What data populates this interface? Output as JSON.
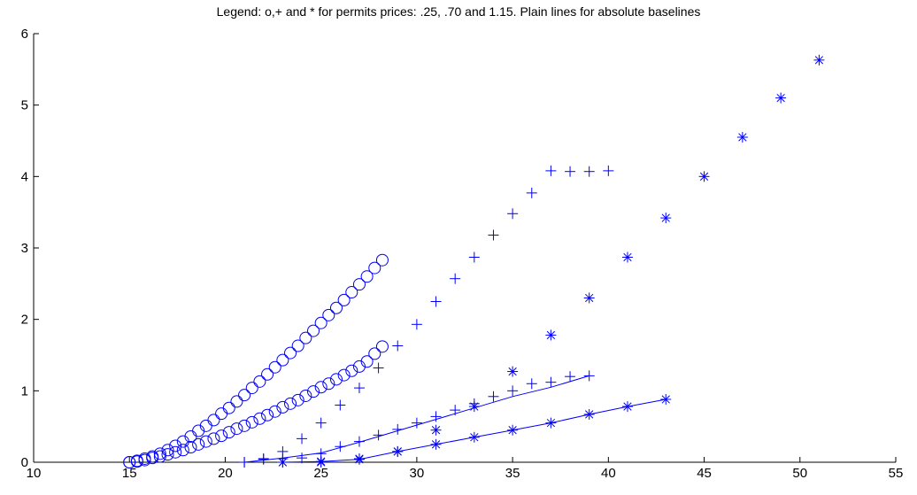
{
  "chart_data": {
    "type": "scatter",
    "title": "Legend: o,+ and * for permits prices: .25, .70 and 1.15. Plain lines for absolute baselines",
    "xlabel": "",
    "ylabel": "",
    "xlim": [
      10,
      55
    ],
    "ylim": [
      0,
      6
    ],
    "xticks": [
      "10",
      "15",
      "20",
      "25",
      "30",
      "35",
      "40",
      "45",
      "50",
      "55"
    ],
    "yticks": [
      "0",
      "1",
      "2",
      "3",
      "4",
      "5",
      "6"
    ],
    "grid": false,
    "color": "#0000ff",
    "series": [
      {
        "marker": "o",
        "x": [
          15,
          15.4,
          15.8,
          16.2,
          16.6,
          17,
          17.4,
          17.8,
          18.2,
          18.6,
          19,
          19.4,
          19.8,
          20.2,
          20.6,
          21,
          21.4,
          21.8,
          22.2,
          22.6,
          23,
          23.4,
          23.8,
          24.2,
          24.6,
          25,
          25.4,
          25.8,
          26.2,
          26.6,
          27,
          27.4,
          27.8,
          28.2
        ],
        "y": [
          0,
          0.02,
          0.05,
          0.08,
          0.12,
          0.17,
          0.23,
          0.29,
          0.36,
          0.44,
          0.51,
          0.59,
          0.68,
          0.76,
          0.85,
          0.94,
          1.04,
          1.13,
          1.23,
          1.33,
          1.43,
          1.53,
          1.63,
          1.74,
          1.84,
          1.95,
          2.06,
          2.16,
          2.27,
          2.38,
          2.49,
          2.6,
          2.72,
          2.83
        ]
      },
      {
        "marker": "o",
        "x": [
          15,
          15.4,
          15.8,
          16.2,
          16.6,
          17,
          17.4,
          17.8,
          18.2,
          18.6,
          19,
          19.4,
          19.8,
          20.2,
          20.6,
          21,
          21.4,
          21.8,
          22.2,
          22.6,
          23,
          23.4,
          23.8,
          24.2,
          24.6,
          25,
          25.4,
          25.8,
          26.2,
          26.6,
          27,
          27.4,
          27.8,
          28.2
        ],
        "y": [
          0,
          0.01,
          0.03,
          0.06,
          0.08,
          0.11,
          0.14,
          0.17,
          0.21,
          0.25,
          0.29,
          0.33,
          0.37,
          0.42,
          0.47,
          0.51,
          0.56,
          0.61,
          0.66,
          0.71,
          0.77,
          0.82,
          0.87,
          0.93,
          0.99,
          1.05,
          1.1,
          1.16,
          1.22,
          1.28,
          1.34,
          1.41,
          1.52,
          1.62
        ]
      },
      {
        "marker": "+",
        "x": [
          21,
          22,
          23,
          24,
          25,
          26,
          27,
          28,
          29,
          30,
          31,
          32,
          33,
          34,
          35,
          36,
          37,
          38,
          39,
          40
        ],
        "y": [
          0,
          0.05,
          0.15,
          0.33,
          0.55,
          0.8,
          1.04,
          1.32,
          1.63,
          1.93,
          2.25,
          2.57,
          2.87,
          3.18,
          3.48,
          3.77,
          4.08,
          4.07,
          4.07,
          4.08
        ]
      },
      {
        "marker": "+",
        "x": [
          21,
          22,
          23,
          24,
          25,
          26,
          27,
          28,
          29,
          30,
          31,
          32,
          33,
          34,
          35,
          36,
          37,
          38,
          39
        ],
        "y": [
          0,
          0.04,
          0.05,
          0.06,
          0.12,
          0.22,
          0.29,
          0.38,
          0.46,
          0.55,
          0.64,
          0.73,
          0.82,
          0.92,
          1.0,
          1.1,
          1.12,
          1.2,
          1.21
        ]
      },
      {
        "marker": "*",
        "x": [
          23,
          25,
          27,
          29,
          31,
          33,
          35,
          37,
          39,
          41,
          43,
          45,
          47,
          49,
          51
        ],
        "y": [
          0,
          0,
          0.05,
          0.15,
          0.45,
          0.78,
          1.27,
          1.78,
          2.3,
          2.87,
          3.42,
          4.0,
          4.55,
          5.1,
          5.63
        ]
      },
      {
        "marker": "*",
        "x": [
          23,
          25,
          27,
          29,
          31,
          33,
          35,
          37,
          39,
          41,
          43
        ],
        "y": [
          0,
          0.01,
          0.04,
          0.15,
          0.25,
          0.35,
          0.45,
          0.55,
          0.67,
          0.78,
          0.88
        ]
      }
    ],
    "lines": [
      {
        "x": [
          21,
          23,
          25,
          27,
          29,
          31,
          33,
          35,
          37,
          39
        ],
        "y": [
          0,
          0.06,
          0.13,
          0.28,
          0.44,
          0.6,
          0.76,
          0.92,
          1.05,
          1.21
        ]
      },
      {
        "x": [
          23,
          25,
          27,
          29,
          31,
          33,
          35,
          37,
          39,
          41,
          43
        ],
        "y": [
          0,
          0.01,
          0.04,
          0.15,
          0.25,
          0.35,
          0.45,
          0.55,
          0.67,
          0.78,
          0.88
        ]
      }
    ]
  }
}
